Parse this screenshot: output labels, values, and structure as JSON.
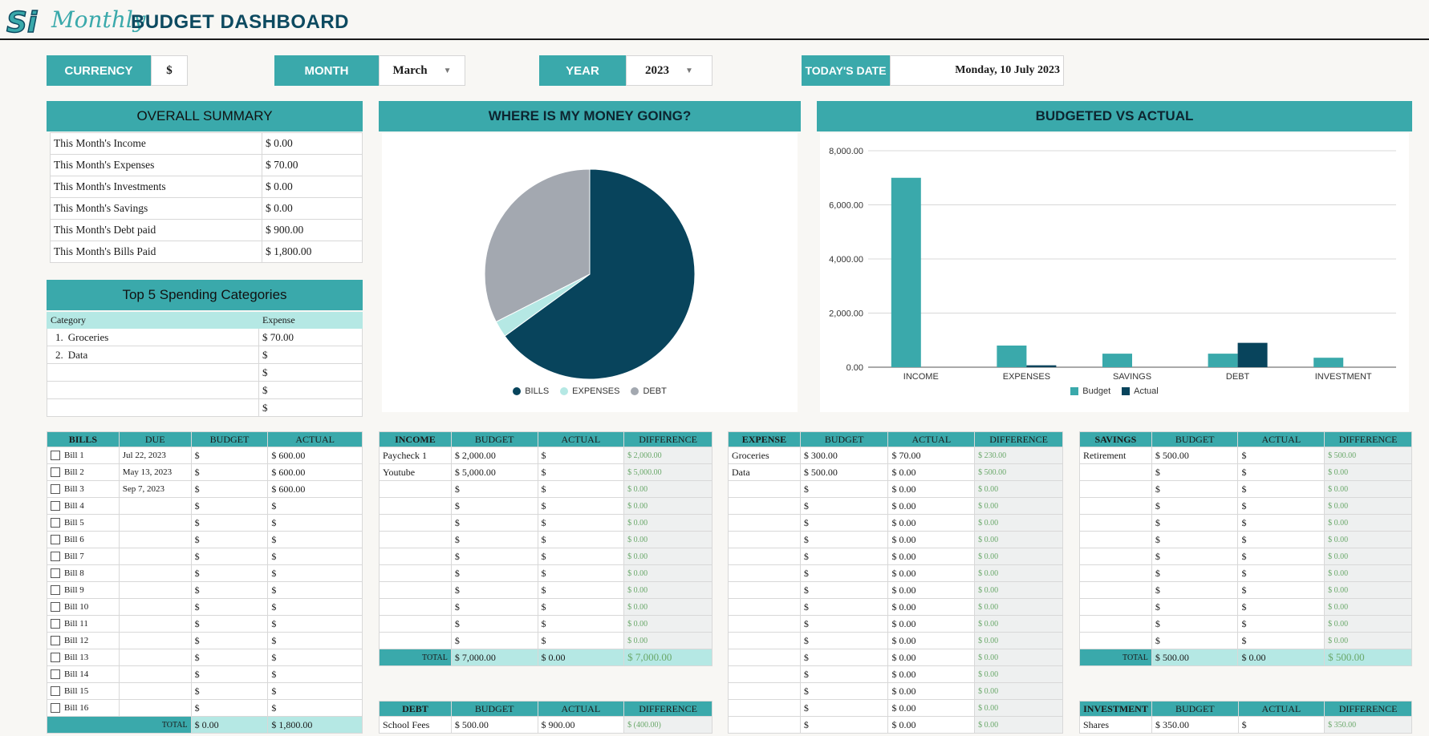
{
  "header": {
    "logo": "Si",
    "script_title": "Monthly",
    "main_title": "BUDGET DASHBOARD"
  },
  "controls": {
    "currency_label": "CURRENCY",
    "currency_value": "$",
    "month_label": "MONTH",
    "month_value": "March",
    "year_label": "YEAR",
    "year_value": "2023",
    "date_label": "TODAY'S DATE",
    "date_value": "Monday, 10 July 2023"
  },
  "overall_summary": {
    "title": "OVERALL SUMMARY",
    "rows": [
      {
        "label": "This Month's Income",
        "value": "$  0.00"
      },
      {
        "label": "This Month's Expenses",
        "value": "$  70.00"
      },
      {
        "label": "This Month's Investments",
        "value": "$  0.00"
      },
      {
        "label": "This Month's Savings",
        "value": "$  0.00"
      },
      {
        "label": "This Month's Debt paid",
        "value": "$  900.00"
      },
      {
        "label": "This Month's Bills Paid",
        "value": "$  1,800.00"
      }
    ]
  },
  "top5": {
    "title": "Top 5 Spending Categories",
    "col_category": "Category",
    "col_expense": "Expense",
    "rows": [
      {
        "num": "1.",
        "category": "Groceries",
        "expense": "$  70.00"
      },
      {
        "num": "2.",
        "category": "Data",
        "expense": "$"
      },
      {
        "num": "",
        "category": "",
        "expense": "$"
      },
      {
        "num": "",
        "category": "",
        "expense": "$"
      },
      {
        "num": "",
        "category": "",
        "expense": "$"
      }
    ]
  },
  "pie_chart": {
    "title": "WHERE IS MY MONEY GOING?",
    "chart_data": {
      "type": "pie",
      "labels": [
        "BILLS",
        "EXPENSES",
        "DEBT"
      ],
      "values": [
        1800,
        70,
        900
      ],
      "colors": [
        "#08445c",
        "#b5e8e4",
        "#a3a8b0"
      ]
    }
  },
  "bar_chart": {
    "title": "BUDGETED VS ACTUAL",
    "chart_data": {
      "type": "bar",
      "categories": [
        "INCOME",
        "EXPENSES",
        "SAVINGS",
        "DEBT",
        "INVESTMENT"
      ],
      "series": [
        {
          "name": "Budget",
          "values": [
            7000,
            800,
            500,
            500,
            350
          ],
          "color": "#3aa9ab"
        },
        {
          "name": "Actual",
          "values": [
            0,
            70,
            0,
            900,
            0
          ],
          "color": "#08445c"
        }
      ],
      "yticks": [
        "0.00",
        "2,000.00",
        "4,000.00",
        "6,000.00",
        "8,000.00"
      ],
      "ylim": [
        0,
        8000
      ]
    }
  },
  "bills": {
    "headers": [
      "BILLS",
      "DUE",
      "BUDGET",
      "ACTUAL"
    ],
    "rows": [
      {
        "name": "Bill 1",
        "due": "Jul 22, 2023",
        "budget": "$",
        "actual": "$  600.00"
      },
      {
        "name": "Bill 2",
        "due": "May 13, 2023",
        "budget": "$",
        "actual": "$  600.00"
      },
      {
        "name": "Bill 3",
        "due": "Sep 7, 2023",
        "budget": "$",
        "actual": "$  600.00"
      },
      {
        "name": "Bill 4",
        "due": "",
        "budget": "$",
        "actual": "$"
      },
      {
        "name": "Bill 5",
        "due": "",
        "budget": "$",
        "actual": "$"
      },
      {
        "name": "Bill 6",
        "due": "",
        "budget": "$",
        "actual": "$"
      },
      {
        "name": "Bill 7",
        "due": "",
        "budget": "$",
        "actual": "$"
      },
      {
        "name": "Bill 8",
        "due": "",
        "budget": "$",
        "actual": "$"
      },
      {
        "name": "Bill 9",
        "due": "",
        "budget": "$",
        "actual": "$"
      },
      {
        "name": "Bill 10",
        "due": "",
        "budget": "$",
        "actual": "$"
      },
      {
        "name": "Bill 11",
        "due": "",
        "budget": "$",
        "actual": "$"
      },
      {
        "name": "Bill 12",
        "due": "",
        "budget": "$",
        "actual": "$"
      },
      {
        "name": "Bill 13",
        "due": "",
        "budget": "$",
        "actual": "$"
      },
      {
        "name": "Bill 14",
        "due": "",
        "budget": "$",
        "actual": "$"
      },
      {
        "name": "Bill 15",
        "due": "",
        "budget": "$",
        "actual": "$"
      },
      {
        "name": "Bill 16",
        "due": "",
        "budget": "$",
        "actual": "$"
      }
    ],
    "total": {
      "label": "TOTAL",
      "budget": "$  0.00",
      "actual": "$  1,800.00"
    }
  },
  "income": {
    "headers": [
      "INCOME",
      "BUDGET",
      "ACTUAL",
      "DIFFERENCE"
    ],
    "rows": [
      {
        "name": "Paycheck 1",
        "budget": "$  2,000.00",
        "actual": "$",
        "diff": "$  2,000.00"
      },
      {
        "name": "Youtube",
        "budget": "$  5,000.00",
        "actual": "$",
        "diff": "$  5,000.00"
      },
      {
        "name": "",
        "budget": "$",
        "actual": "$",
        "diff": "$  0.00"
      },
      {
        "name": "",
        "budget": "$",
        "actual": "$",
        "diff": "$  0.00"
      },
      {
        "name": "",
        "budget": "$",
        "actual": "$",
        "diff": "$  0.00"
      },
      {
        "name": "",
        "budget": "$",
        "actual": "$",
        "diff": "$  0.00"
      },
      {
        "name": "",
        "budget": "$",
        "actual": "$",
        "diff": "$  0.00"
      },
      {
        "name": "",
        "budget": "$",
        "actual": "$",
        "diff": "$  0.00"
      },
      {
        "name": "",
        "budget": "$",
        "actual": "$",
        "diff": "$  0.00"
      },
      {
        "name": "",
        "budget": "$",
        "actual": "$",
        "diff": "$  0.00"
      },
      {
        "name": "",
        "budget": "$",
        "actual": "$",
        "diff": "$  0.00"
      },
      {
        "name": "",
        "budget": "$",
        "actual": "$",
        "diff": "$  0.00"
      }
    ],
    "total": {
      "label": "TOTAL",
      "budget": "$  7,000.00",
      "actual": "$  0.00",
      "diff": "$  7,000.00"
    }
  },
  "debt": {
    "headers": [
      "DEBT",
      "BUDGET",
      "ACTUAL",
      "DIFFERENCE"
    ],
    "rows": [
      {
        "name": "School Fees",
        "budget": "$  500.00",
        "actual": "$  900.00",
        "diff": "$  (400.00)"
      }
    ]
  },
  "expense": {
    "headers": [
      "EXPENSE",
      "BUDGET",
      "ACTUAL",
      "DIFFERENCE"
    ],
    "rows": [
      {
        "name": "Groceries",
        "budget": "$  300.00",
        "actual": "$  70.00",
        "diff": "$  230.00"
      },
      {
        "name": "Data",
        "budget": "$  500.00",
        "actual": "$  0.00",
        "diff": "$  500.00"
      },
      {
        "name": "",
        "budget": "$",
        "actual": "$  0.00",
        "diff": "$  0.00"
      },
      {
        "name": "",
        "budget": "$",
        "actual": "$  0.00",
        "diff": "$  0.00"
      },
      {
        "name": "",
        "budget": "$",
        "actual": "$  0.00",
        "diff": "$  0.00"
      },
      {
        "name": "",
        "budget": "$",
        "actual": "$  0.00",
        "diff": "$  0.00"
      },
      {
        "name": "",
        "budget": "$",
        "actual": "$  0.00",
        "diff": "$  0.00"
      },
      {
        "name": "",
        "budget": "$",
        "actual": "$  0.00",
        "diff": "$  0.00"
      },
      {
        "name": "",
        "budget": "$",
        "actual": "$  0.00",
        "diff": "$  0.00"
      },
      {
        "name": "",
        "budget": "$",
        "actual": "$  0.00",
        "diff": "$  0.00"
      },
      {
        "name": "",
        "budget": "$",
        "actual": "$  0.00",
        "diff": "$  0.00"
      },
      {
        "name": "",
        "budget": "$",
        "actual": "$  0.00",
        "diff": "$  0.00"
      },
      {
        "name": "",
        "budget": "$",
        "actual": "$  0.00",
        "diff": "$  0.00"
      },
      {
        "name": "",
        "budget": "$",
        "actual": "$  0.00",
        "diff": "$  0.00"
      },
      {
        "name": "",
        "budget": "$",
        "actual": "$  0.00",
        "diff": "$  0.00"
      },
      {
        "name": "",
        "budget": "$",
        "actual": "$  0.00",
        "diff": "$  0.00"
      },
      {
        "name": "",
        "budget": "$",
        "actual": "$  0.00",
        "diff": "$  0.00"
      }
    ]
  },
  "savings": {
    "headers": [
      "SAVINGS",
      "BUDGET",
      "ACTUAL",
      "DIFFERENCE"
    ],
    "rows": [
      {
        "name": "Retirement",
        "budget": "$  500.00",
        "actual": "$",
        "diff": "$  500.00"
      },
      {
        "name": "",
        "budget": "$",
        "actual": "$",
        "diff": "$  0.00"
      },
      {
        "name": "",
        "budget": "$",
        "actual": "$",
        "diff": "$  0.00"
      },
      {
        "name": "",
        "budget": "$",
        "actual": "$",
        "diff": "$  0.00"
      },
      {
        "name": "",
        "budget": "$",
        "actual": "$",
        "diff": "$  0.00"
      },
      {
        "name": "",
        "budget": "$",
        "actual": "$",
        "diff": "$  0.00"
      },
      {
        "name": "",
        "budget": "$",
        "actual": "$",
        "diff": "$  0.00"
      },
      {
        "name": "",
        "budget": "$",
        "actual": "$",
        "diff": "$  0.00"
      },
      {
        "name": "",
        "budget": "$",
        "actual": "$",
        "diff": "$  0.00"
      },
      {
        "name": "",
        "budget": "$",
        "actual": "$",
        "diff": "$  0.00"
      },
      {
        "name": "",
        "budget": "$",
        "actual": "$",
        "diff": "$  0.00"
      },
      {
        "name": "",
        "budget": "$",
        "actual": "$",
        "diff": "$  0.00"
      }
    ],
    "total": {
      "label": "TOTAL",
      "budget": "$  500.00",
      "actual": "$  0.00",
      "diff": "$  500.00"
    }
  },
  "investment": {
    "headers": [
      "INVESTMENT",
      "BUDGET",
      "ACTUAL",
      "DIFFERENCE"
    ],
    "rows": [
      {
        "name": "Shares",
        "budget": "$  350.00",
        "actual": "$",
        "diff": "$  350.00"
      }
    ]
  }
}
